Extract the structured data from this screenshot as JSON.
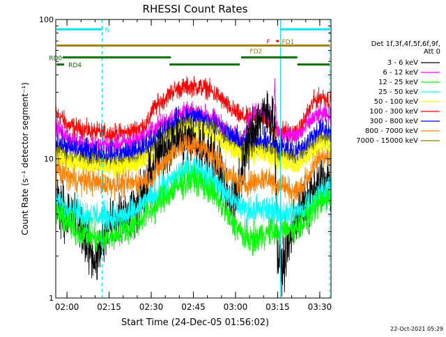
{
  "chart_data": {
    "type": "line",
    "title": "RHESSI Count Rates",
    "xlabel": "Start Time (24-Dec-05 01:56:02)",
    "ylabel": "Count Rate (s⁻¹ detector segment⁻¹)",
    "x_range_minutes": [
      0,
      98
    ],
    "ylim": [
      1,
      100
    ],
    "y_scale": "log",
    "y_ticks": [
      {
        "value": 1,
        "label": "1"
      },
      {
        "value": 10,
        "label": "10"
      },
      {
        "value": 100,
        "label": "100"
      }
    ],
    "x_ticks": [
      {
        "t": 4,
        "label": "02:00"
      },
      {
        "t": 19,
        "label": "02:15"
      },
      {
        "t": 34,
        "label": "02:30"
      },
      {
        "t": 49,
        "label": "02:45"
      },
      {
        "t": 64,
        "label": "03:00"
      },
      {
        "t": 79,
        "label": "03:15"
      },
      {
        "t": 94,
        "label": "03:30"
      }
    ],
    "legend": {
      "placement": "right",
      "header": [
        "Det 1f,3f,4f,5f,6f,9f,",
        "Att 0"
      ],
      "entries": [
        {
          "label": "3 - 6 keV",
          "color": "#000000"
        },
        {
          "label": "6 - 12 keV",
          "color": "#ff00ff"
        },
        {
          "label": "12 - 25 keV",
          "color": "#00ff00"
        },
        {
          "label": "25 - 50 keV",
          "color": "#00ffff"
        },
        {
          "label": "50 - 100 keV",
          "color": "#ffff00"
        },
        {
          "label": "100 - 300 keV",
          "color": "#ff0000"
        },
        {
          "label": "300 - 800 keV",
          "color": "#0000ff"
        },
        {
          "label": "800 - 7000 keV",
          "color": "#ff8000"
        },
        {
          "label": "7000 - 15000 keV",
          "color": "#808000"
        }
      ]
    },
    "series": [
      {
        "color": "#ff0000",
        "noise": 0.06,
        "points": [
          [
            0,
            21
          ],
          [
            2,
            20
          ],
          [
            4,
            17.5
          ],
          [
            8,
            16.5
          ],
          [
            14,
            15.5
          ],
          [
            20,
            15
          ],
          [
            26,
            15.5
          ],
          [
            33,
            18
          ],
          [
            34,
            22
          ],
          [
            37,
            25
          ],
          [
            42,
            31
          ],
          [
            47,
            33
          ],
          [
            50,
            33
          ],
          [
            54,
            32
          ],
          [
            58,
            28
          ],
          [
            62,
            23
          ],
          [
            66,
            20
          ],
          [
            70,
            19.5
          ],
          [
            72,
            21
          ],
          [
            74,
            20
          ],
          [
            77,
            17
          ],
          [
            79,
            15.5
          ],
          [
            81,
            16
          ],
          [
            84,
            15
          ],
          [
            87,
            16
          ],
          [
            89,
            20
          ],
          [
            92,
            26
          ],
          [
            95,
            28
          ],
          [
            98,
            26
          ]
        ]
      },
      {
        "color": "#ff00ff",
        "noise": 0.06,
        "points": [
          [
            0,
            17
          ],
          [
            2,
            15.5
          ],
          [
            4,
            14
          ],
          [
            8,
            13
          ],
          [
            14,
            12.5
          ],
          [
            20,
            12.5
          ],
          [
            26,
            13
          ],
          [
            32,
            14.5
          ],
          [
            34,
            16
          ],
          [
            40,
            19
          ],
          [
            44,
            21
          ],
          [
            48,
            21.5
          ],
          [
            52,
            21
          ],
          [
            56,
            19.5
          ],
          [
            60,
            17
          ],
          [
            63,
            14.5
          ],
          [
            66,
            14
          ],
          [
            69,
            19
          ],
          [
            72,
            23
          ],
          [
            74,
            22
          ],
          [
            76,
            20
          ],
          [
            77,
            19
          ],
          [
            78,
            35
          ],
          [
            78.6,
            17
          ],
          [
            80,
            14.5
          ],
          [
            82,
            15
          ],
          [
            85,
            14.5
          ],
          [
            88,
            16
          ],
          [
            91,
            19
          ],
          [
            94,
            21
          ],
          [
            98,
            20
          ]
        ]
      },
      {
        "color": "#0000ff",
        "noise": 0.08,
        "points": [
          [
            0,
            13
          ],
          [
            4,
            12
          ],
          [
            8,
            11.5
          ],
          [
            14,
            11
          ],
          [
            20,
            10.5
          ],
          [
            26,
            11
          ],
          [
            32,
            12
          ],
          [
            34,
            13.5
          ],
          [
            37,
            14.5
          ],
          [
            42,
            18
          ],
          [
            47,
            20
          ],
          [
            50,
            20
          ],
          [
            54,
            19
          ],
          [
            58,
            17
          ],
          [
            62,
            14.5
          ],
          [
            66,
            13
          ],
          [
            70,
            13
          ],
          [
            74,
            13
          ],
          [
            77,
            13
          ],
          [
            79,
            12
          ],
          [
            82,
            12
          ],
          [
            85,
            11
          ],
          [
            88,
            12
          ],
          [
            91,
            14
          ],
          [
            94,
            16
          ],
          [
            98,
            15.5
          ]
        ]
      },
      {
        "color": "#808000",
        "noise": 0.05,
        "points": [
          [
            0,
            11.5
          ],
          [
            4,
            10.5
          ],
          [
            8,
            10
          ],
          [
            14,
            9.5
          ],
          [
            20,
            9.2
          ],
          [
            26,
            9.5
          ],
          [
            32,
            10.5
          ],
          [
            36,
            12.5
          ],
          [
            40,
            15
          ],
          [
            44,
            17
          ],
          [
            48,
            18
          ],
          [
            52,
            17.5
          ],
          [
            56,
            16
          ],
          [
            60,
            14
          ],
          [
            64,
            12
          ],
          [
            68,
            11.5
          ],
          [
            72,
            12
          ],
          [
            76,
            11.5
          ],
          [
            79,
            10.5
          ],
          [
            82,
            10.5
          ],
          [
            86,
            10
          ],
          [
            89,
            11
          ],
          [
            92,
            13
          ],
          [
            95,
            14
          ],
          [
            98,
            13.5
          ]
        ]
      },
      {
        "color": "#ffff00",
        "noise": 0.06,
        "points": [
          [
            0,
            10.5
          ],
          [
            4,
            9.5
          ],
          [
            8,
            9.2
          ],
          [
            14,
            8.8
          ],
          [
            20,
            8.6
          ],
          [
            26,
            8.8
          ],
          [
            32,
            9.8
          ],
          [
            36,
            11.5
          ],
          [
            40,
            13.5
          ],
          [
            44,
            15.5
          ],
          [
            48,
            16.5
          ],
          [
            52,
            16
          ],
          [
            56,
            14.5
          ],
          [
            60,
            12.5
          ],
          [
            64,
            11
          ],
          [
            68,
            10.5
          ],
          [
            72,
            11
          ],
          [
            76,
            10.5
          ],
          [
            79,
            9.5
          ],
          [
            82,
            9.5
          ],
          [
            86,
            9
          ],
          [
            89,
            10
          ],
          [
            92,
            11.5
          ],
          [
            95,
            12.5
          ],
          [
            98,
            12
          ]
        ]
      },
      {
        "color": "#000000",
        "noise": 0.16,
        "points": [
          [
            0,
            5.5
          ],
          [
            2,
            4.5
          ],
          [
            4,
            4
          ],
          [
            6,
            3.8
          ],
          [
            8,
            3.4
          ],
          [
            10,
            3
          ],
          [
            12,
            2.2
          ],
          [
            14,
            1.9
          ],
          [
            16,
            2.2
          ],
          [
            18,
            3
          ],
          [
            20,
            3.6
          ],
          [
            22,
            3.8
          ],
          [
            24,
            4
          ],
          [
            26,
            4.1
          ],
          [
            28,
            4.5
          ],
          [
            30,
            5
          ],
          [
            32,
            6.2
          ],
          [
            34,
            8
          ],
          [
            35,
            9
          ],
          [
            37,
            11
          ],
          [
            40,
            12.5
          ],
          [
            43,
            14
          ],
          [
            46,
            13.5
          ],
          [
            48,
            14
          ],
          [
            50,
            12.5
          ],
          [
            52,
            12
          ],
          [
            54,
            11.5
          ],
          [
            56,
            10.5
          ],
          [
            58,
            9
          ],
          [
            60,
            6.5
          ],
          [
            62,
            5.2
          ],
          [
            64,
            5
          ],
          [
            65,
            6.5
          ],
          [
            67,
            10
          ],
          [
            69,
            14
          ],
          [
            71,
            17
          ],
          [
            73,
            20
          ],
          [
            75,
            20.5
          ],
          [
            77,
            21
          ],
          [
            78,
            17
          ],
          [
            79,
            1.9
          ],
          [
            81,
            1.7
          ],
          [
            83,
            2.5
          ],
          [
            85,
            3.5
          ],
          [
            88,
            4.5
          ],
          [
            91,
            5.5
          ],
          [
            93,
            6
          ],
          [
            95,
            6.8
          ],
          [
            98,
            6.8
          ]
        ]
      },
      {
        "color": "#ff8000",
        "noise": 0.08,
        "points": [
          [
            0,
            8.5
          ],
          [
            4,
            7.5
          ],
          [
            8,
            7
          ],
          [
            14,
            6.8
          ],
          [
            20,
            6.5
          ],
          [
            26,
            6.6
          ],
          [
            32,
            7
          ],
          [
            34,
            7.2
          ],
          [
            38,
            9
          ],
          [
            42,
            11.5
          ],
          [
            46,
            12.5
          ],
          [
            50,
            12.5
          ],
          [
            54,
            11.5
          ],
          [
            58,
            9.5
          ],
          [
            62,
            7.5
          ],
          [
            66,
            6.6
          ],
          [
            70,
            6.8
          ],
          [
            74,
            7.2
          ],
          [
            77,
            7
          ],
          [
            79,
            6.5
          ],
          [
            81,
            6.5
          ],
          [
            84,
            5.8
          ],
          [
            87,
            6
          ],
          [
            90,
            7.5
          ],
          [
            93,
            9.5
          ],
          [
            95,
            11
          ],
          [
            98,
            9.5
          ]
        ]
      },
      {
        "color": "#00ffff",
        "noise": 0.09,
        "points": [
          [
            0,
            5
          ],
          [
            4,
            4.5
          ],
          [
            8,
            4.1
          ],
          [
            14,
            3.9
          ],
          [
            20,
            3.8
          ],
          [
            26,
            3.9
          ],
          [
            30,
            4.5
          ],
          [
            34,
            5.2
          ],
          [
            38,
            6
          ],
          [
            42,
            7.2
          ],
          [
            46,
            8.3
          ],
          [
            49,
            8.8
          ],
          [
            52,
            8.2
          ],
          [
            56,
            7
          ],
          [
            60,
            5.8
          ],
          [
            64,
            4.8
          ],
          [
            68,
            4.3
          ],
          [
            72,
            4.3
          ],
          [
            75,
            4.3
          ],
          [
            77,
            4.3
          ],
          [
            79,
            4
          ],
          [
            81,
            4.1
          ],
          [
            84,
            4
          ],
          [
            87,
            4.2
          ],
          [
            90,
            4.8
          ],
          [
            93,
            5.3
          ],
          [
            95,
            6
          ],
          [
            98,
            6
          ]
        ]
      },
      {
        "color": "#00ff00",
        "noise": 0.09,
        "points": [
          [
            0,
            4.2
          ],
          [
            4,
            3.5
          ],
          [
            8,
            3
          ],
          [
            12,
            2.8
          ],
          [
            16,
            2.6
          ],
          [
            20,
            2.8
          ],
          [
            26,
            3.1
          ],
          [
            30,
            3.6
          ],
          [
            34,
            4.3
          ],
          [
            38,
            5
          ],
          [
            42,
            6
          ],
          [
            46,
            6.8
          ],
          [
            49,
            7.2
          ],
          [
            52,
            6.7
          ],
          [
            56,
            5.6
          ],
          [
            60,
            4.3
          ],
          [
            64,
            3.3
          ],
          [
            67,
            2.8
          ],
          [
            70,
            2.6
          ],
          [
            73,
            2.8
          ],
          [
            76,
            3
          ],
          [
            78,
            3
          ],
          [
            80,
            3
          ],
          [
            82,
            3.1
          ],
          [
            85,
            3.1
          ],
          [
            88,
            3.5
          ],
          [
            91,
            4
          ],
          [
            94,
            4.8
          ],
          [
            96,
            5.3
          ],
          [
            98,
            5.3
          ]
        ]
      }
    ],
    "vlines": [
      {
        "t": 0,
        "style": "solid"
      },
      {
        "t": 16.5,
        "style": "dashed"
      },
      {
        "t": 80,
        "style": "solid"
      },
      {
        "t": 97.5,
        "style": "dashed"
      }
    ],
    "bars": [
      {
        "label": "N",
        "color": "#00e5ee",
        "y": 85,
        "segments": [
          [
            0.3,
            16.5
          ],
          [
            80,
            97.5
          ]
        ],
        "label_t": 17.5,
        "label_side": "right"
      },
      {
        "label": "F",
        "color": "#ff0000",
        "y": 70,
        "segments": [
          [
            78.5,
            79.5
          ]
        ],
        "label_t": 76.3,
        "label_side": "left"
      },
      {
        "label": "FD1",
        "color": "#a08000",
        "y": 65,
        "segments": [
          [
            0.3,
            97.5
          ]
        ],
        "label_t": 80.5,
        "label_side": "right",
        "label_y": 70
      },
      {
        "label": "FD2",
        "color": "#a08000",
        "y": 60,
        "segments": [],
        "label_t": 73.5,
        "label_side": "left"
      },
      {
        "label": "RD0",
        "color": "#007000",
        "y": 53.5,
        "segments": [
          [
            2.5,
            41
          ],
          [
            66,
            86
          ]
        ],
        "label_t": 2.3,
        "label_side": "left"
      },
      {
        "label": "RD4",
        "color": "#007000",
        "y": 47.5,
        "segments": [
          [
            0.3,
            3
          ],
          [
            40.5,
            65.5
          ],
          [
            86,
            97.5
          ]
        ],
        "label_t": 4.5,
        "label_side": "right"
      }
    ]
  },
  "footer": {
    "timestamp": "22-Oct-2021 05:29"
  }
}
